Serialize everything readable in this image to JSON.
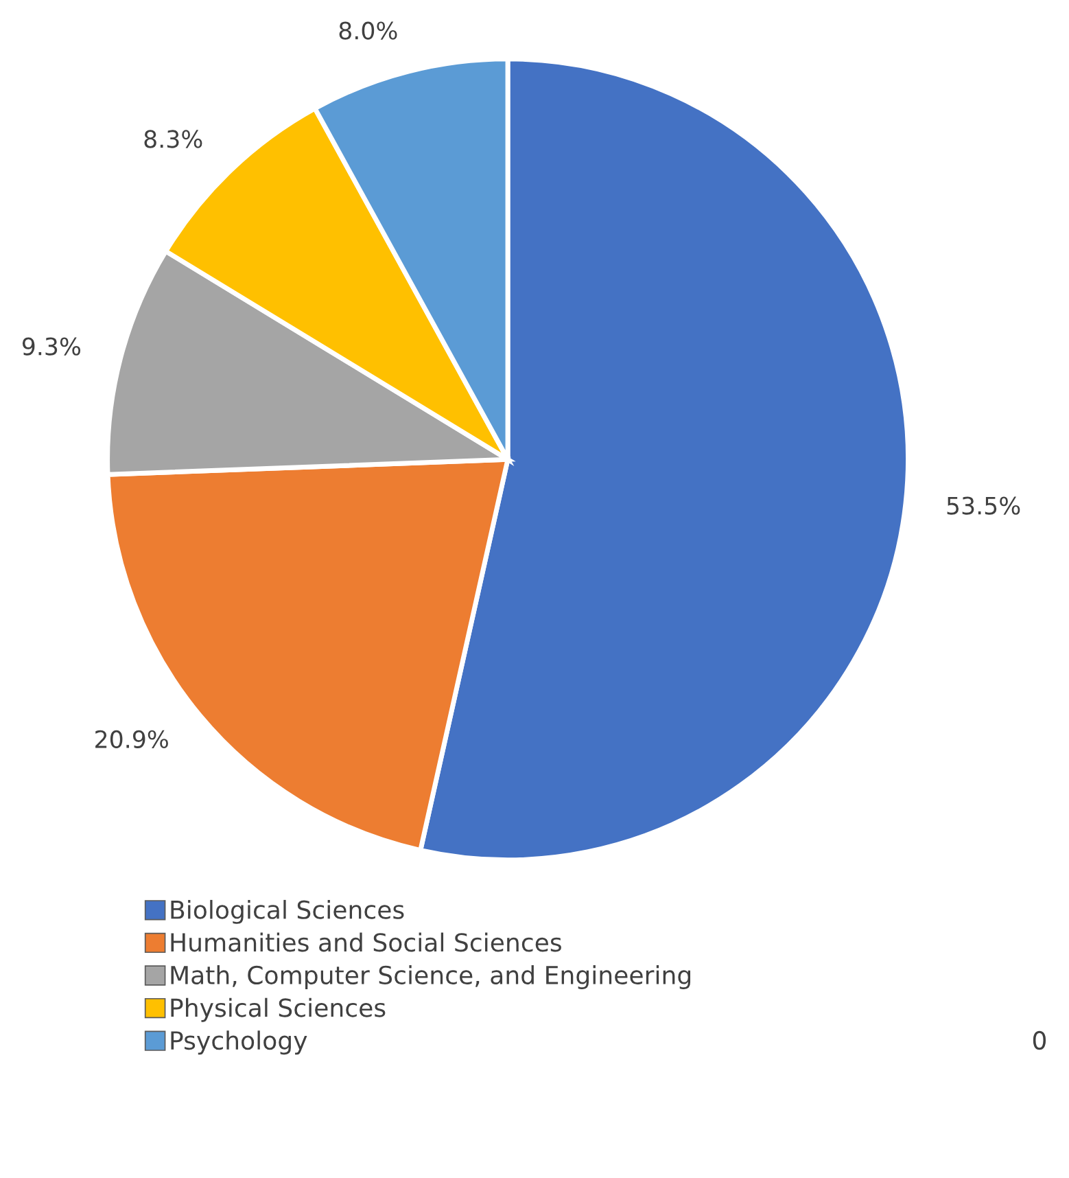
{
  "chart_data": {
    "type": "pie",
    "categories": [
      "Biological Sciences",
      "Humanities and Social Sciences",
      "Math, Computer Science, and Engineering",
      "Physical Sciences",
      "Psychology"
    ],
    "values": [
      53.5,
      20.9,
      9.3,
      8.3,
      8.0
    ],
    "value_labels": [
      "53.5%",
      "20.9%",
      "9.3%",
      "8.3%",
      "8.0%"
    ],
    "colors": [
      "#4472c4",
      "#ed7d31",
      "#a5a5a5",
      "#ffc000",
      "#5b9bd5"
    ],
    "legend": "bottom left",
    "annotations": [
      "0"
    ]
  }
}
